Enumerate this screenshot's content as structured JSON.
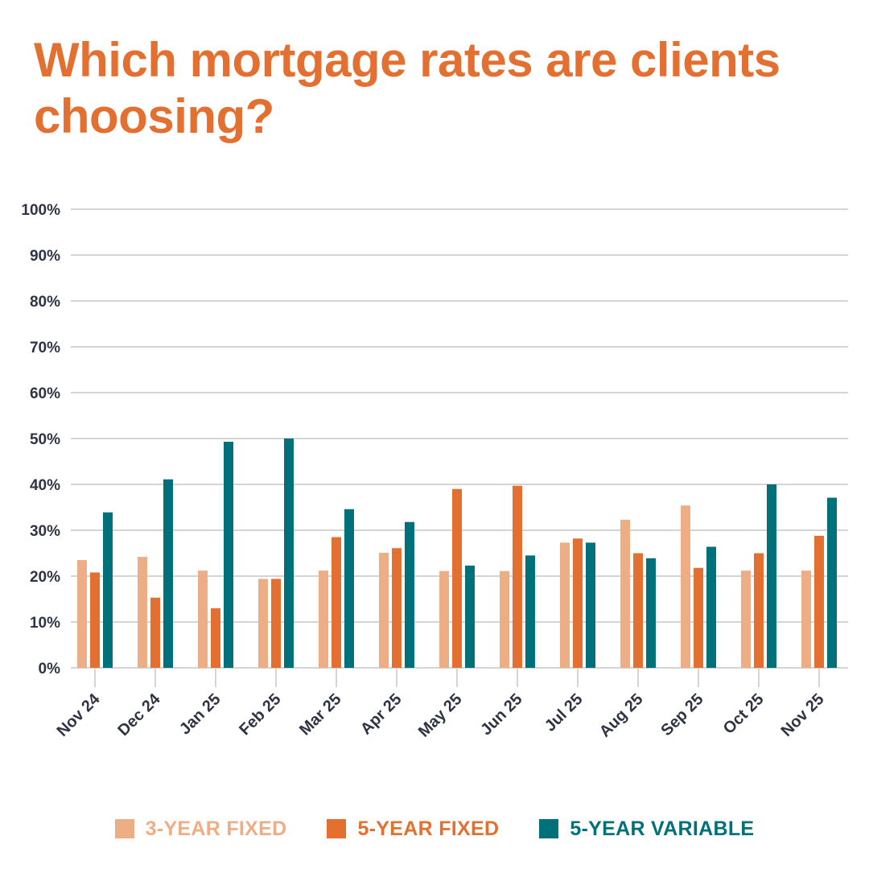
{
  "colors": {
    "title": "#E37031",
    "three_year_fixed": "#EDAE85",
    "five_year_fixed": "#E37031",
    "five_year_variable": "#00707A",
    "axis_text": "#2F3444",
    "grid": "#D5D5D8"
  },
  "chart_data": {
    "type": "bar",
    "title": "Which mortgage rates are clients choosing?",
    "xlabel": "",
    "ylabel": "",
    "ylim": [
      0,
      100
    ],
    "yticks": [
      "0%",
      "10%",
      "20%",
      "30%",
      "40%",
      "50%",
      "60%",
      "70%",
      "80%",
      "90%",
      "100%"
    ],
    "grid": true,
    "legend_position": "bottom",
    "categories": [
      "Nov 24",
      "Dec 24",
      "Jan 25",
      "Feb 25",
      "Mar 25",
      "Apr 25",
      "May 25",
      "Jun 25",
      "Jul 25",
      "Aug 25",
      "Sep 25",
      "Oct 25",
      "Nov 25"
    ],
    "series": [
      {
        "name": "3-YEAR FIXED",
        "color_key": "three_year_fixed",
        "values": [
          23.5,
          24.2,
          21.2,
          19.4,
          21.2,
          25.1,
          21.1,
          21.1,
          27.3,
          32.3,
          35.4,
          21.2,
          21.2
        ]
      },
      {
        "name": "5-YEAR FIXED",
        "color_key": "five_year_fixed",
        "values": [
          20.8,
          15.3,
          13.0,
          19.4,
          28.5,
          26.1,
          39.0,
          39.7,
          28.2,
          25.0,
          21.8,
          25.0,
          28.8
        ]
      },
      {
        "name": "5-YEAR VARIABLE",
        "color_key": "five_year_variable",
        "values": [
          33.9,
          41.1,
          49.3,
          50.0,
          34.6,
          31.8,
          22.3,
          24.5,
          27.3,
          23.9,
          26.4,
          40.0,
          37.1
        ]
      }
    ]
  }
}
